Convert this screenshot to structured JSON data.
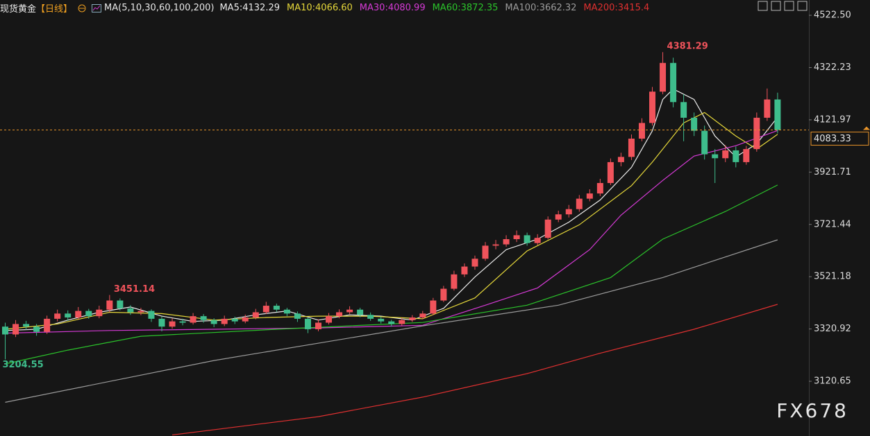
{
  "chart_data": {
    "type": "candlestick",
    "title": "现货黄金",
    "subtitle": "【日线】",
    "indicator": "MA(5,10,30,60,100,200)",
    "watermark": "FX678",
    "xlim": [
      -0.5,
      77
    ],
    "ylim": [
      2911,
      4581
    ],
    "yticks": [
      {
        "value": 4522.5,
        "label": "4522.50"
      },
      4322.23,
      4121.97,
      3921.71,
      3721.44,
      3521.18,
      3320.92,
      3120.65
    ],
    "up_color": "#f0535b",
    "down_color": "#3ebd8c",
    "ohlc": {
      "open": [
        3330,
        3300,
        3340,
        3330,
        3310,
        3360,
        3380,
        3365,
        3390,
        3370,
        3395,
        3430,
        3400,
        3385,
        3390,
        3360,
        3330,
        3350,
        3345,
        3370,
        3355,
        3340,
        3360,
        3350,
        3365,
        3385,
        3410,
        3395,
        3380,
        3360,
        3320,
        3345,
        3370,
        3385,
        3395,
        3375,
        3360,
        3350,
        3340,
        3355,
        3365,
        3380,
        3430,
        3475,
        3530,
        3560,
        3590,
        3640,
        3645,
        3665,
        3680,
        3650,
        3670,
        3740,
        3760,
        3780,
        3820,
        3840,
        3880,
        3960,
        3980,
        4050,
        4110,
        4230,
        4340,
        4190,
        4130,
        4080,
        3990,
        3975,
        4005,
        3960,
        4010,
        4130,
        4200
      ],
      "high": [
        3345,
        3355,
        3352,
        3340,
        3372,
        3395,
        3392,
        3405,
        3398,
        3410,
        3451.14,
        3438,
        3412,
        3402,
        3396,
        3368,
        3362,
        3360,
        3382,
        3378,
        3362,
        3372,
        3368,
        3376,
        3398,
        3425,
        3418,
        3402,
        3388,
        3366,
        3358,
        3382,
        3396,
        3408,
        3402,
        3384,
        3368,
        3356,
        3364,
        3374,
        3390,
        3440,
        3486,
        3544,
        3572,
        3602,
        3654,
        3662,
        3680,
        3698,
        3690,
        3684,
        3752,
        3774,
        3796,
        3834,
        3856,
        3896,
        3974,
        3996,
        4066,
        4128,
        4248,
        4381.29,
        4360,
        4220,
        4150,
        4100,
        4010,
        4025,
        4020,
        4022,
        4150,
        4242,
        4226
      ],
      "low": [
        3204.55,
        3290,
        3318,
        3295,
        3302,
        3350,
        3352,
        3358,
        3360,
        3362,
        3385,
        3392,
        3375,
        3374,
        3348,
        3312,
        3322,
        3335,
        3338,
        3345,
        3328,
        3332,
        3340,
        3343,
        3358,
        3378,
        3386,
        3370,
        3348,
        3305,
        3312,
        3338,
        3362,
        3378,
        3366,
        3352,
        3342,
        3330,
        3334,
        3348,
        3358,
        3374,
        3424,
        3468,
        3520,
        3548,
        3582,
        3626,
        3636,
        3654,
        3640,
        3642,
        3664,
        3730,
        3748,
        3770,
        3810,
        3830,
        3872,
        3944,
        3968,
        4040,
        4100,
        4220,
        4170,
        4040,
        4060,
        3970,
        3880,
        3960,
        3940,
        3950,
        4000,
        4118,
        4070
      ],
      "close": [
        3300,
        3340,
        3330,
        3310,
        3360,
        3380,
        3365,
        3390,
        3370,
        3395,
        3430,
        3400,
        3385,
        3390,
        3360,
        3330,
        3350,
        3345,
        3370,
        3355,
        3340,
        3360,
        3350,
        3365,
        3385,
        3410,
        3395,
        3380,
        3360,
        3320,
        3345,
        3370,
        3385,
        3395,
        3375,
        3360,
        3350,
        3340,
        3355,
        3365,
        3380,
        3430,
        3475,
        3530,
        3560,
        3590,
        3640,
        3645,
        3665,
        3680,
        3650,
        3670,
        3740,
        3760,
        3780,
        3820,
        3840,
        3880,
        3960,
        3980,
        4050,
        4110,
        4230,
        4340,
        4190,
        4130,
        4080,
        3990,
        3975,
        4005,
        3960,
        4010,
        4130,
        4200,
        4083.33
      ]
    },
    "series": [
      {
        "name": "MA5:4132.29",
        "color": "#ececec",
        "x": [
          0,
          3,
          6,
          9,
          12,
          15,
          18,
          21,
          24,
          27,
          30,
          33,
          36,
          39,
          42,
          45,
          48,
          51,
          54,
          57,
          60,
          62,
          63,
          64,
          66,
          68,
          70,
          72,
          74
        ],
        "values": [
          3315,
          3320,
          3355,
          3385,
          3405,
          3370,
          3350,
          3355,
          3375,
          3390,
          3355,
          3375,
          3370,
          3355,
          3400,
          3520,
          3625,
          3665,
          3730,
          3815,
          3940,
          4080,
          4200,
          4240,
          4200,
          4060,
          3980,
          4030,
          4132.29
        ]
      },
      {
        "name": "MA10:4066.60",
        "color": "#e6d83a",
        "x": [
          0,
          5,
          10,
          15,
          20,
          25,
          30,
          35,
          40,
          45,
          50,
          55,
          60,
          62,
          65,
          67,
          70,
          72,
          74
        ],
        "values": [
          3320,
          3340,
          3385,
          3380,
          3355,
          3365,
          3370,
          3370,
          3360,
          3440,
          3620,
          3720,
          3870,
          3960,
          4110,
          4150,
          4060,
          4010,
          4066.6
        ]
      },
      {
        "name": "MA30:4080.99",
        "color": "#d63ad6",
        "x": [
          0,
          10,
          20,
          30,
          40,
          46,
          51,
          56,
          59,
          63,
          66,
          70,
          74
        ],
        "values": [
          3305,
          3315,
          3320,
          3325,
          3335,
          3412,
          3478,
          3625,
          3757,
          3890,
          3983,
          4023,
          4080.99
        ]
      },
      {
        "name": "MA60:3872.35",
        "color": "#2bc42b",
        "x": [
          0,
          6,
          13,
          26,
          40,
          50,
          58,
          63,
          69,
          74
        ],
        "values": [
          3187,
          3240,
          3293,
          3320,
          3346,
          3412,
          3518,
          3665,
          3771,
          3872.35
        ]
      },
      {
        "name": "MA100:3662.32",
        "color": "#9c9c9c",
        "x": [
          0,
          20,
          40,
          53,
          63,
          74
        ],
        "values": [
          3040,
          3200,
          3333,
          3412,
          3518,
          3662.32
        ]
      },
      {
        "name": "MA200:3415.4",
        "color": "#e03030",
        "x": [
          16,
          30,
          40,
          50,
          57,
          66,
          74
        ],
        "values": [
          2915,
          2985,
          3060,
          3150,
          3228,
          3320,
          3415.4
        ]
      }
    ]
  }
}
